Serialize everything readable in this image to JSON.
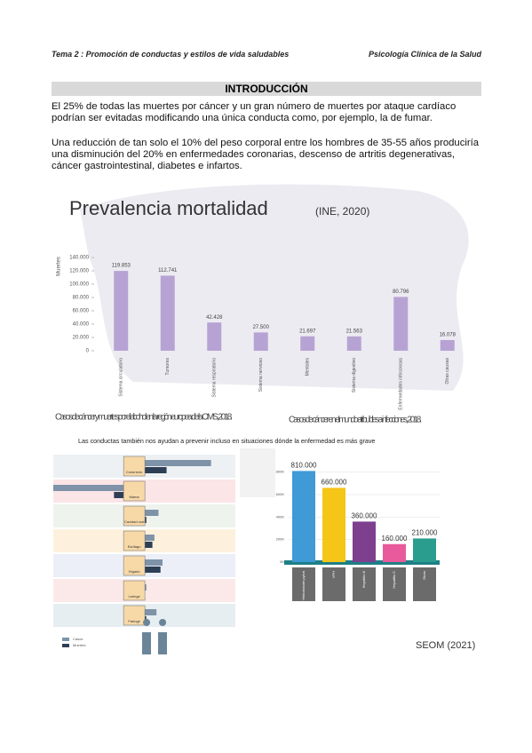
{
  "header": {
    "left": "Tema 2 : Promoción de conductas y estilos de vida saludables",
    "right": "Psicología Clínica de la Salud"
  },
  "section_title": "INTRODUCCIÓN",
  "paragraphs": [
    "El 25% de todas las muertes por cáncer y un gran número de muertes por ataque cardíaco podrían ser evitadas modificando una única conducta como, por ejemplo, la de fumar.",
    "Una reducción de tan solo el 10% del peso corporal entre los hombres de 35-55 años produciría una disminución del 20% en enfermedades coronarias, descenso de artritis degenerativas, cáncer gastrointestinal, diabetes e infartos."
  ],
  "middle_note": "Las conductas también nos ayudan a prevenir incluso en situaciones dónde la enfermedad es más grave",
  "source": "SEOM (2021)",
  "charts": [
    {
      "type": "bar",
      "title": "Prevalencia mortalidad",
      "subtitle": "(INE, 2020)",
      "y_label": "Muertes",
      "color": "#b7a3d3",
      "categories": [
        "Sistema circulatorio",
        "Tumores",
        "Sistema respiratorio",
        "Sistema nervioso",
        "Mentales",
        "Sistema digestivo",
        "Enfermedades infecciosas",
        "Otras causas"
      ],
      "values": [
        119853,
        112741,
        42428,
        27500,
        21697,
        21563,
        80796,
        16078
      ],
      "value_labels": [
        "119.853",
        "112.741",
        "42.428",
        "27.500",
        "21.697",
        "21.563",
        "80.796",
        "16.078"
      ],
      "ylim": [
        0,
        140000
      ],
      "yticks": [
        0,
        {
          "value": 20000,
          "label": "20.000"
        },
        {
          "value": 40000,
          "label": "40.000"
        },
        {
          "value": 60000,
          "label": "60.000"
        },
        {
          "value": 80000,
          "label": "80.000"
        },
        {
          "value": 100000,
          "label": "100.000"
        },
        {
          "value": 120000,
          "label": "120.000"
        },
        {
          "value": 140000,
          "label": "140.000"
        }
      ]
    },
    {
      "type": "hbar",
      "title": "Casos de cáncer y muertes por el alcohol en la región europea de la OMS, 2018.",
      "categories": [
        "Colorrecto",
        "Mama",
        "Cavidad oral",
        "Esófago",
        "Hígado",
        "Laringe",
        "Faringe"
      ],
      "series": [
        {
          "name": "Casos",
          "color": "#7f93a8",
          "values": [
            38000,
            -40000,
            12000,
            10000,
            14000,
            6000,
            11000
          ]
        },
        {
          "name": "Muertes",
          "color": "#2e3f55",
          "values": [
            16000,
            -10000,
            6000,
            9000,
            13000,
            4000,
            6000
          ]
        }
      ],
      "xlim": [
        -40000,
        50000
      ]
    },
    {
      "type": "bar",
      "title": "Casos de cáncer en el mundo atribuibles a infecciones, 2018.",
      "colors": [
        "#3f9ad6",
        "#f5c518",
        "#7e3f8f",
        "#e85a9b",
        "#2a9d8f"
      ],
      "categories": [
        "Helicobacter pylori",
        "VPH",
        "Hepatitis B",
        "Hepatitis C",
        "Otros"
      ],
      "values": [
        810000,
        660000,
        360000,
        160000,
        210000
      ],
      "value_labels": [
        "810.000",
        "660.000",
        "360.000",
        "160.000",
        "210.000"
      ],
      "ylim": [
        0,
        900000
      ],
      "yticks": [
        {
          "value": 0,
          "label": "0K"
        },
        {
          "value": 200000,
          "label": "200K"
        },
        {
          "value": 400000,
          "label": "400K"
        },
        {
          "value": 600000,
          "label": "600K"
        },
        {
          "value": 800000,
          "label": "800K"
        }
      ]
    }
  ]
}
